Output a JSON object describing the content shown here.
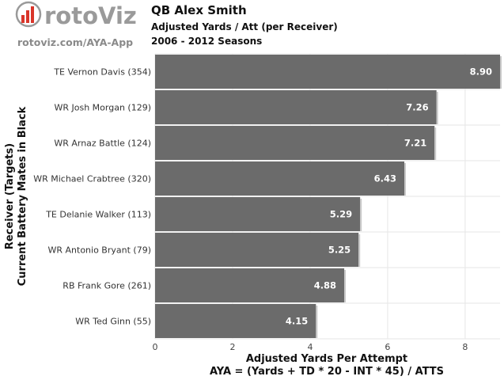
{
  "branding": {
    "logo_text": "rotoViz",
    "site_link": "rotoviz.com/AYA-App",
    "accent_color": "#d9352a",
    "gray_color": "#9a9a9a"
  },
  "chart_data": {
    "type": "bar",
    "orientation": "horizontal",
    "title": "QB Alex Smith",
    "subtitle_lines": [
      "Adjusted Yards / Att (per Receiver)",
      "2006 - 2012 Seasons"
    ],
    "categories": [
      "TE Vernon Davis (354)",
      "WR Josh Morgan (129)",
      "WR Arnaz Battle (124)",
      "WR Michael Crabtree (320)",
      "TE Delanie Walker (113)",
      "WR Antonio Bryant (79)",
      "RB Frank Gore (261)",
      "WR Ted Ginn (55)"
    ],
    "values": [
      8.9,
      7.26,
      7.21,
      6.43,
      5.29,
      5.25,
      4.88,
      4.15
    ],
    "value_labels": [
      "8.90",
      "7.26",
      "7.21",
      "6.43",
      "5.29",
      "5.25",
      "4.88",
      "4.15"
    ],
    "xlabel_lines": [
      "Adjusted Yards Per Attempt",
      "AYA = (Yards + TD * 20 - INT * 45) / ATTS"
    ],
    "ylabel_lines": [
      "Receiver (Targets)",
      "Current Battery Mates in Black"
    ],
    "xlim": [
      0,
      8.9
    ],
    "xticks": [
      0,
      2,
      4,
      6,
      8
    ],
    "grid": true,
    "bar_color": "#6b6b6b",
    "grid_color": "#e6e6e6"
  }
}
